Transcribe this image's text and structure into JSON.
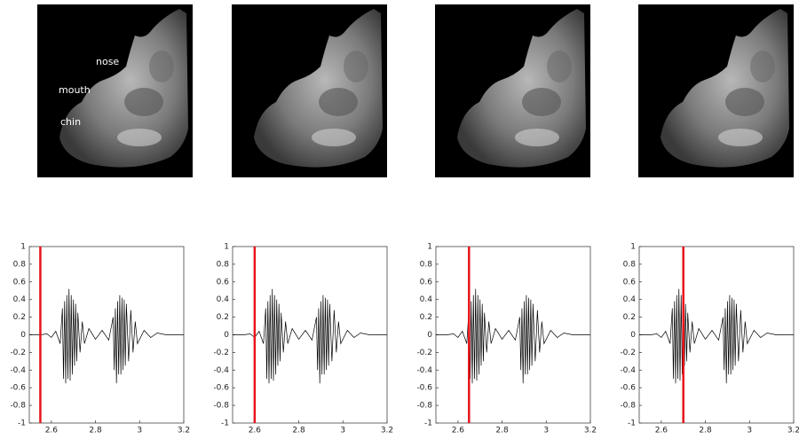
{
  "image_labels": [
    "nose",
    "mouth",
    "chin"
  ],
  "chart_data": [
    {
      "type": "line",
      "xlim": [
        2.5,
        3.2
      ],
      "xticks": [
        2.6,
        2.8,
        3,
        3.2
      ],
      "ylim": [
        -1,
        1
      ],
      "yticks": [
        -1,
        -0.8,
        -0.6,
        -0.4,
        -0.2,
        0,
        0.2,
        0.4,
        0.6,
        0.8,
        1
      ],
      "marker_x": 2.55,
      "marker_color": "#e8141a",
      "x": [
        2.5,
        2.55,
        2.58,
        2.6,
        2.62,
        2.64,
        2.65,
        2.655,
        2.66,
        2.665,
        2.67,
        2.675,
        2.68,
        2.685,
        2.69,
        2.695,
        2.7,
        2.705,
        2.71,
        2.715,
        2.72,
        2.73,
        2.74,
        2.75,
        2.77,
        2.8,
        2.83,
        2.86,
        2.88,
        2.885,
        2.89,
        2.895,
        2.9,
        2.905,
        2.91,
        2.915,
        2.92,
        2.925,
        2.93,
        2.935,
        2.94,
        2.95,
        2.96,
        2.97,
        2.98,
        2.99,
        3.02,
        3.05,
        3.08,
        3.12,
        3.2
      ],
      "series": [
        {
          "color": "#000000",
          "values": [
            0,
            0,
            0.01,
            -0.03,
            0.04,
            -0.1,
            0.3,
            -0.5,
            0.38,
            -0.55,
            0.45,
            -0.5,
            0.52,
            -0.52,
            0.45,
            -0.45,
            0.4,
            -0.35,
            0.35,
            -0.3,
            0.25,
            -0.2,
            0.15,
            -0.1,
            0.07,
            -0.05,
            0.05,
            -0.06,
            0.2,
            -0.4,
            0.3,
            -0.55,
            0.38,
            -0.45,
            0.45,
            -0.45,
            0.42,
            -0.4,
            0.4,
            -0.35,
            0.35,
            -0.3,
            0.28,
            -0.2,
            0.15,
            -0.1,
            0.05,
            -0.03,
            0.02,
            0,
            0
          ]
        }
      ]
    },
    {
      "type": "line",
      "xlim": [
        2.5,
        3.2
      ],
      "xticks": [
        2.6,
        2.8,
        3,
        3.2
      ],
      "ylim": [
        -1,
        1
      ],
      "yticks": [
        -1,
        -0.8,
        -0.6,
        -0.4,
        -0.2,
        0,
        0.2,
        0.4,
        0.6,
        0.8,
        1
      ],
      "marker_x": 2.6,
      "marker_color": "#e8141a",
      "x": [
        2.5,
        2.55,
        2.58,
        2.6,
        2.62,
        2.64,
        2.65,
        2.655,
        2.66,
        2.665,
        2.67,
        2.675,
        2.68,
        2.685,
        2.69,
        2.695,
        2.7,
        2.705,
        2.71,
        2.715,
        2.72,
        2.73,
        2.74,
        2.75,
        2.77,
        2.8,
        2.83,
        2.86,
        2.88,
        2.885,
        2.89,
        2.895,
        2.9,
        2.905,
        2.91,
        2.915,
        2.92,
        2.925,
        2.93,
        2.935,
        2.94,
        2.95,
        2.96,
        2.97,
        2.98,
        2.99,
        3.02,
        3.05,
        3.08,
        3.12,
        3.2
      ],
      "series": [
        {
          "color": "#000000",
          "values": [
            0,
            0,
            0.01,
            -0.03,
            0.04,
            -0.1,
            0.3,
            -0.5,
            0.38,
            -0.55,
            0.45,
            -0.5,
            0.52,
            -0.52,
            0.45,
            -0.45,
            0.4,
            -0.35,
            0.35,
            -0.3,
            0.25,
            -0.2,
            0.15,
            -0.1,
            0.07,
            -0.05,
            0.05,
            -0.06,
            0.2,
            -0.4,
            0.3,
            -0.55,
            0.38,
            -0.45,
            0.45,
            -0.45,
            0.42,
            -0.4,
            0.4,
            -0.35,
            0.35,
            -0.3,
            0.28,
            -0.2,
            0.15,
            -0.1,
            0.05,
            -0.03,
            0.02,
            0,
            0
          ]
        }
      ]
    },
    {
      "type": "line",
      "xlim": [
        2.5,
        3.2
      ],
      "xticks": [
        2.6,
        2.8,
        3,
        3.2
      ],
      "ylim": [
        -1,
        1
      ],
      "yticks": [
        -1,
        -0.8,
        -0.6,
        -0.4,
        -0.2,
        0,
        0.2,
        0.4,
        0.6,
        0.8,
        1
      ],
      "marker_x": 2.65,
      "marker_color": "#e8141a",
      "x": [
        2.5,
        2.55,
        2.58,
        2.6,
        2.62,
        2.64,
        2.65,
        2.655,
        2.66,
        2.665,
        2.67,
        2.675,
        2.68,
        2.685,
        2.69,
        2.695,
        2.7,
        2.705,
        2.71,
        2.715,
        2.72,
        2.73,
        2.74,
        2.75,
        2.77,
        2.8,
        2.83,
        2.86,
        2.88,
        2.885,
        2.89,
        2.895,
        2.9,
        2.905,
        2.91,
        2.915,
        2.92,
        2.925,
        2.93,
        2.935,
        2.94,
        2.95,
        2.96,
        2.97,
        2.98,
        2.99,
        3.02,
        3.05,
        3.08,
        3.12,
        3.2
      ],
      "series": [
        {
          "color": "#000000",
          "values": [
            0,
            0,
            0.01,
            -0.03,
            0.04,
            -0.1,
            0.3,
            -0.5,
            0.38,
            -0.55,
            0.45,
            -0.5,
            0.52,
            -0.52,
            0.45,
            -0.45,
            0.4,
            -0.35,
            0.35,
            -0.3,
            0.25,
            -0.2,
            0.15,
            -0.1,
            0.07,
            -0.05,
            0.05,
            -0.06,
            0.2,
            -0.4,
            0.3,
            -0.55,
            0.38,
            -0.45,
            0.45,
            -0.45,
            0.42,
            -0.4,
            0.4,
            -0.35,
            0.35,
            -0.3,
            0.28,
            -0.2,
            0.15,
            -0.1,
            0.05,
            -0.03,
            0.02,
            0,
            0
          ]
        }
      ]
    },
    {
      "type": "line",
      "xlim": [
        2.5,
        3.2
      ],
      "xticks": [
        2.6,
        2.8,
        3,
        3.2
      ],
      "ylim": [
        -1,
        1
      ],
      "yticks": [
        -1,
        -0.8,
        -0.6,
        -0.4,
        -0.2,
        0,
        0.2,
        0.4,
        0.6,
        0.8,
        1
      ],
      "marker_x": 2.7,
      "marker_color": "#e8141a",
      "x": [
        2.5,
        2.55,
        2.58,
        2.6,
        2.62,
        2.64,
        2.65,
        2.655,
        2.66,
        2.665,
        2.67,
        2.675,
        2.68,
        2.685,
        2.69,
        2.695,
        2.7,
        2.705,
        2.71,
        2.715,
        2.72,
        2.73,
        2.74,
        2.75,
        2.77,
        2.8,
        2.83,
        2.86,
        2.88,
        2.885,
        2.89,
        2.895,
        2.9,
        2.905,
        2.91,
        2.915,
        2.92,
        2.925,
        2.93,
        2.935,
        2.94,
        2.95,
        2.96,
        2.97,
        2.98,
        2.99,
        3.02,
        3.05,
        3.08,
        3.12,
        3.2
      ],
      "series": [
        {
          "color": "#000000",
          "values": [
            0,
            0,
            0.01,
            -0.03,
            0.04,
            -0.1,
            0.3,
            -0.5,
            0.38,
            -0.55,
            0.45,
            -0.5,
            0.52,
            -0.52,
            0.45,
            -0.45,
            0.4,
            -0.35,
            0.35,
            -0.3,
            0.25,
            -0.2,
            0.15,
            -0.1,
            0.07,
            -0.05,
            0.05,
            -0.06,
            0.2,
            -0.4,
            0.3,
            -0.55,
            0.38,
            -0.45,
            0.45,
            -0.45,
            0.42,
            -0.4,
            0.4,
            -0.35,
            0.35,
            -0.3,
            0.28,
            -0.2,
            0.15,
            -0.1,
            0.05,
            -0.03,
            0.02,
            0,
            0
          ]
        }
      ]
    }
  ]
}
